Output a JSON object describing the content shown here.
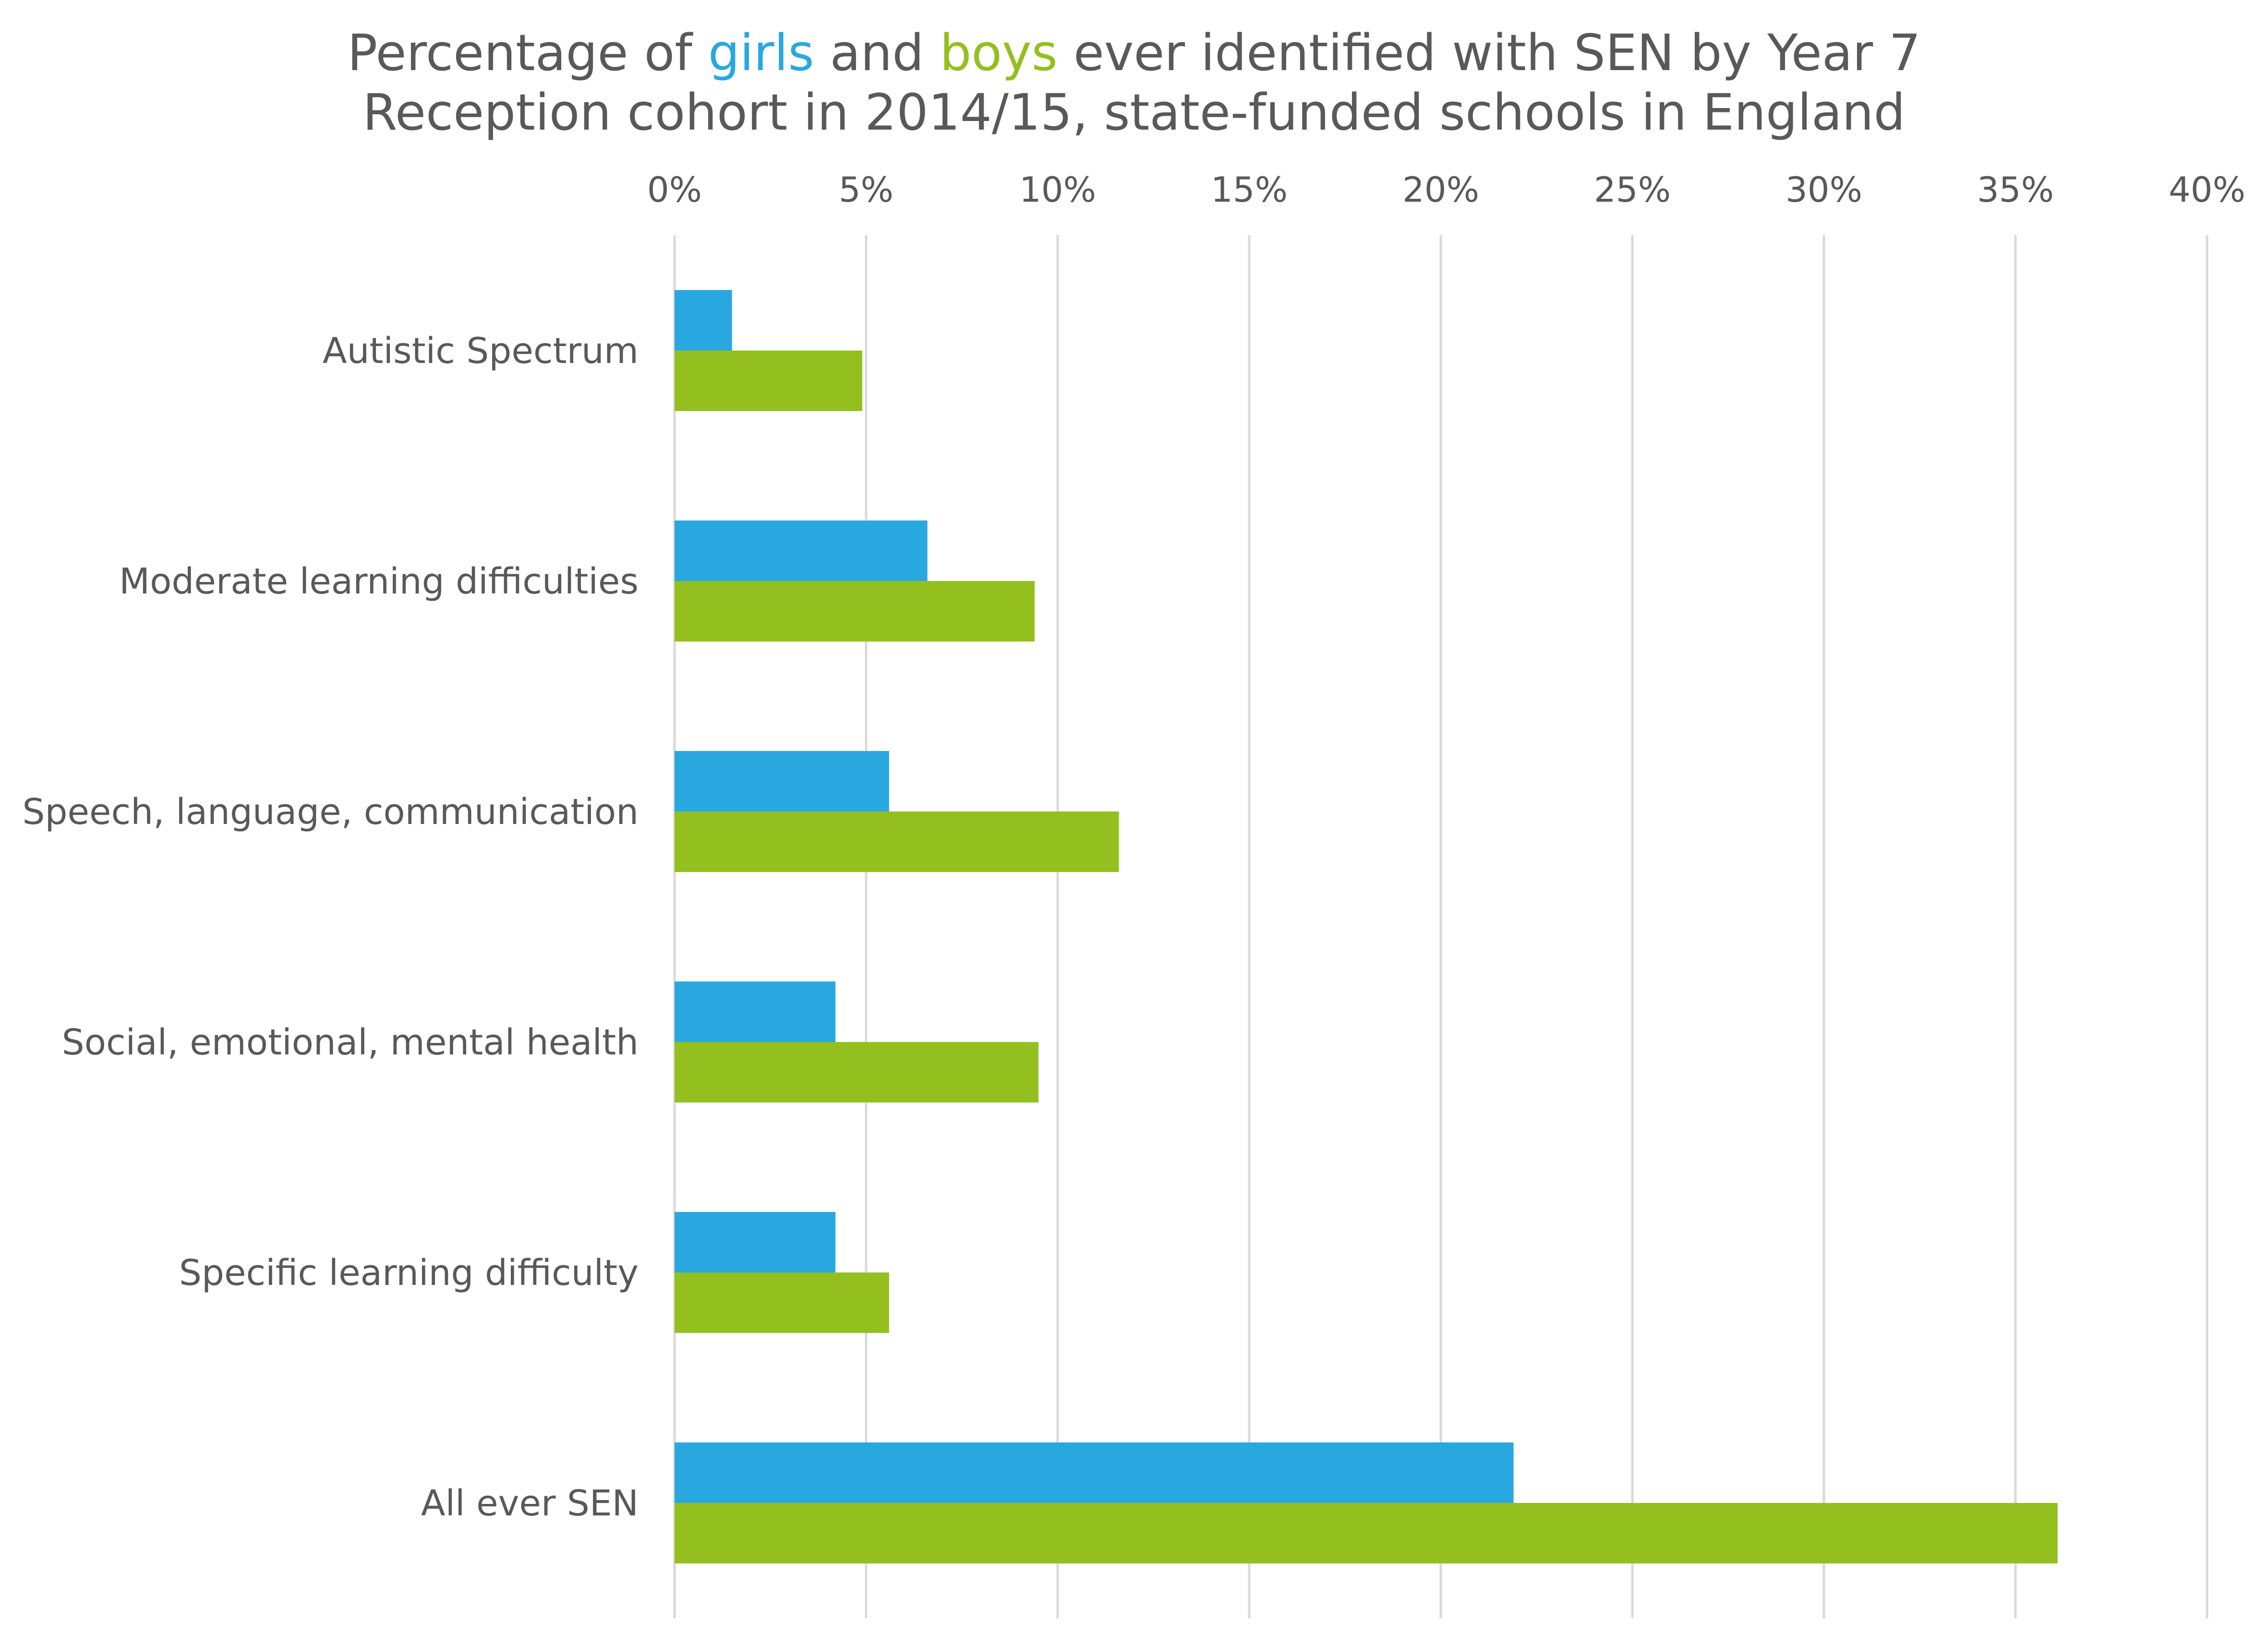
{
  "title": {
    "line1_prefix": "Percentage of ",
    "girls_word": "girls",
    "and_word": " and ",
    "boys_word": "boys",
    "line1_suffix": " ever identified with SEN by Year 7",
    "line2": "Reception cohort in 2014/15, state-funded schools in England"
  },
  "chart_data": {
    "type": "bar",
    "orientation": "horizontal",
    "categories": [
      "Autistic Spectrum",
      "Moderate learning difficulties",
      "Speech, language, communication",
      "Social, emotional, mental health",
      "Specific learning difficulty",
      "All ever SEN"
    ],
    "series": [
      {
        "name": "girls",
        "color": "#29a8e0",
        "values": [
          1.5,
          6.6,
          5.6,
          4.2,
          4.2,
          21.9
        ]
      },
      {
        "name": "boys",
        "color": "#93c01f",
        "values": [
          4.9,
          9.4,
          11.6,
          9.5,
          5.6,
          36.1
        ]
      }
    ],
    "xlim": [
      0,
      40
    ],
    "x_ticks": [
      "0%",
      "5%",
      "10%",
      "15%",
      "20%",
      "25%",
      "30%",
      "35%",
      "40%"
    ],
    "x_tick_values": [
      0,
      5,
      10,
      15,
      20,
      25,
      30,
      35,
      40
    ],
    "xaxis_position": "top",
    "grid": true,
    "legend": "none (series named in title)"
  }
}
